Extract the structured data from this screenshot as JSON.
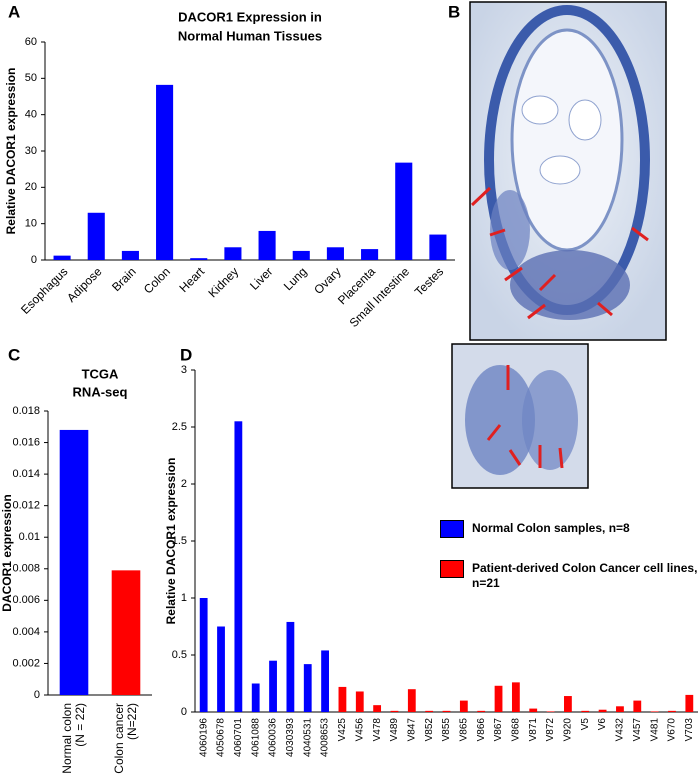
{
  "chart_data": [
    {
      "type": "bar",
      "panel": "A",
      "title": [
        "DACOR1 Expression in",
        "Normal Human Tissues"
      ],
      "ylabel": "Relative DACOR1 expression",
      "categories": [
        "Esophagus",
        "Adipose",
        "Brain",
        "Colon",
        "Heart",
        "Kidney",
        "Liver",
        "Lung",
        "Ovary",
        "Placenta",
        "Small Intestine",
        "Testes"
      ],
      "values": [
        1.2,
        13,
        2.5,
        48.2,
        0.5,
        3.5,
        8,
        2.5,
        3.5,
        3,
        26.8,
        7
      ],
      "color": "#0000ff",
      "ylim": [
        0,
        60
      ],
      "yticks": [
        0,
        10,
        20,
        30,
        40,
        50,
        60
      ]
    },
    {
      "type": "bar",
      "panel": "C",
      "title": [
        "TCGA",
        "RNA-seq"
      ],
      "ylabel": "DACOR1 expression",
      "categories": [
        [
          "Normal colon",
          "(N = 22)"
        ],
        [
          "Colon cancer",
          "(N=22)"
        ]
      ],
      "values": [
        0.0168,
        0.0079
      ],
      "colors": [
        "#0000ff",
        "#ff0000"
      ],
      "ylim": [
        0,
        0.018
      ],
      "yticks": [
        0,
        0.002,
        0.004,
        0.006,
        0.008,
        0.01,
        0.012,
        0.014,
        0.016,
        0.018
      ]
    },
    {
      "type": "bar",
      "panel": "D",
      "ylabel": "Relative DACOR1 expression",
      "categories": [
        "4060196",
        "4050678",
        "4060701",
        "4061088",
        "4060036",
        "4030393",
        "4040531",
        "4008653",
        "V425",
        "V456",
        "V478",
        "V489",
        "V847",
        "V852",
        "V855",
        "V865",
        "V866",
        "V867",
        "V868",
        "V871",
        "V872",
        "V920",
        "V5",
        "V6",
        "V432",
        "V457",
        "V481",
        "V670",
        "V703"
      ],
      "series": [
        {
          "name": "Normal Colon samples, n=8",
          "color": "#0000ff",
          "values": [
            1.0,
            0.75,
            2.55,
            0.25,
            0.45,
            0.79,
            0.42,
            0.54,
            null,
            null,
            null,
            null,
            null,
            null,
            null,
            null,
            null,
            null,
            null,
            null,
            null,
            null,
            null,
            null,
            null,
            null,
            null,
            null,
            null
          ]
        },
        {
          "name": "Patient-derived Colon Cancer cell lines, n=21",
          "color": "#ff0000",
          "values": [
            null,
            null,
            null,
            null,
            null,
            null,
            null,
            null,
            0.22,
            0.18,
            0.06,
            0.01,
            0.2,
            0.01,
            0.01,
            0.1,
            0.01,
            0.23,
            0.26,
            0.03,
            0.005,
            0.14,
            0.01,
            0.02,
            0.05,
            0.1,
            0.005,
            0.01,
            0.15
          ]
        }
      ],
      "ylim": [
        0,
        3
      ],
      "yticks": [
        0,
        0.5,
        1,
        1.5,
        2,
        2.5,
        3
      ]
    }
  ],
  "image_panel": {
    "panel": "B"
  }
}
